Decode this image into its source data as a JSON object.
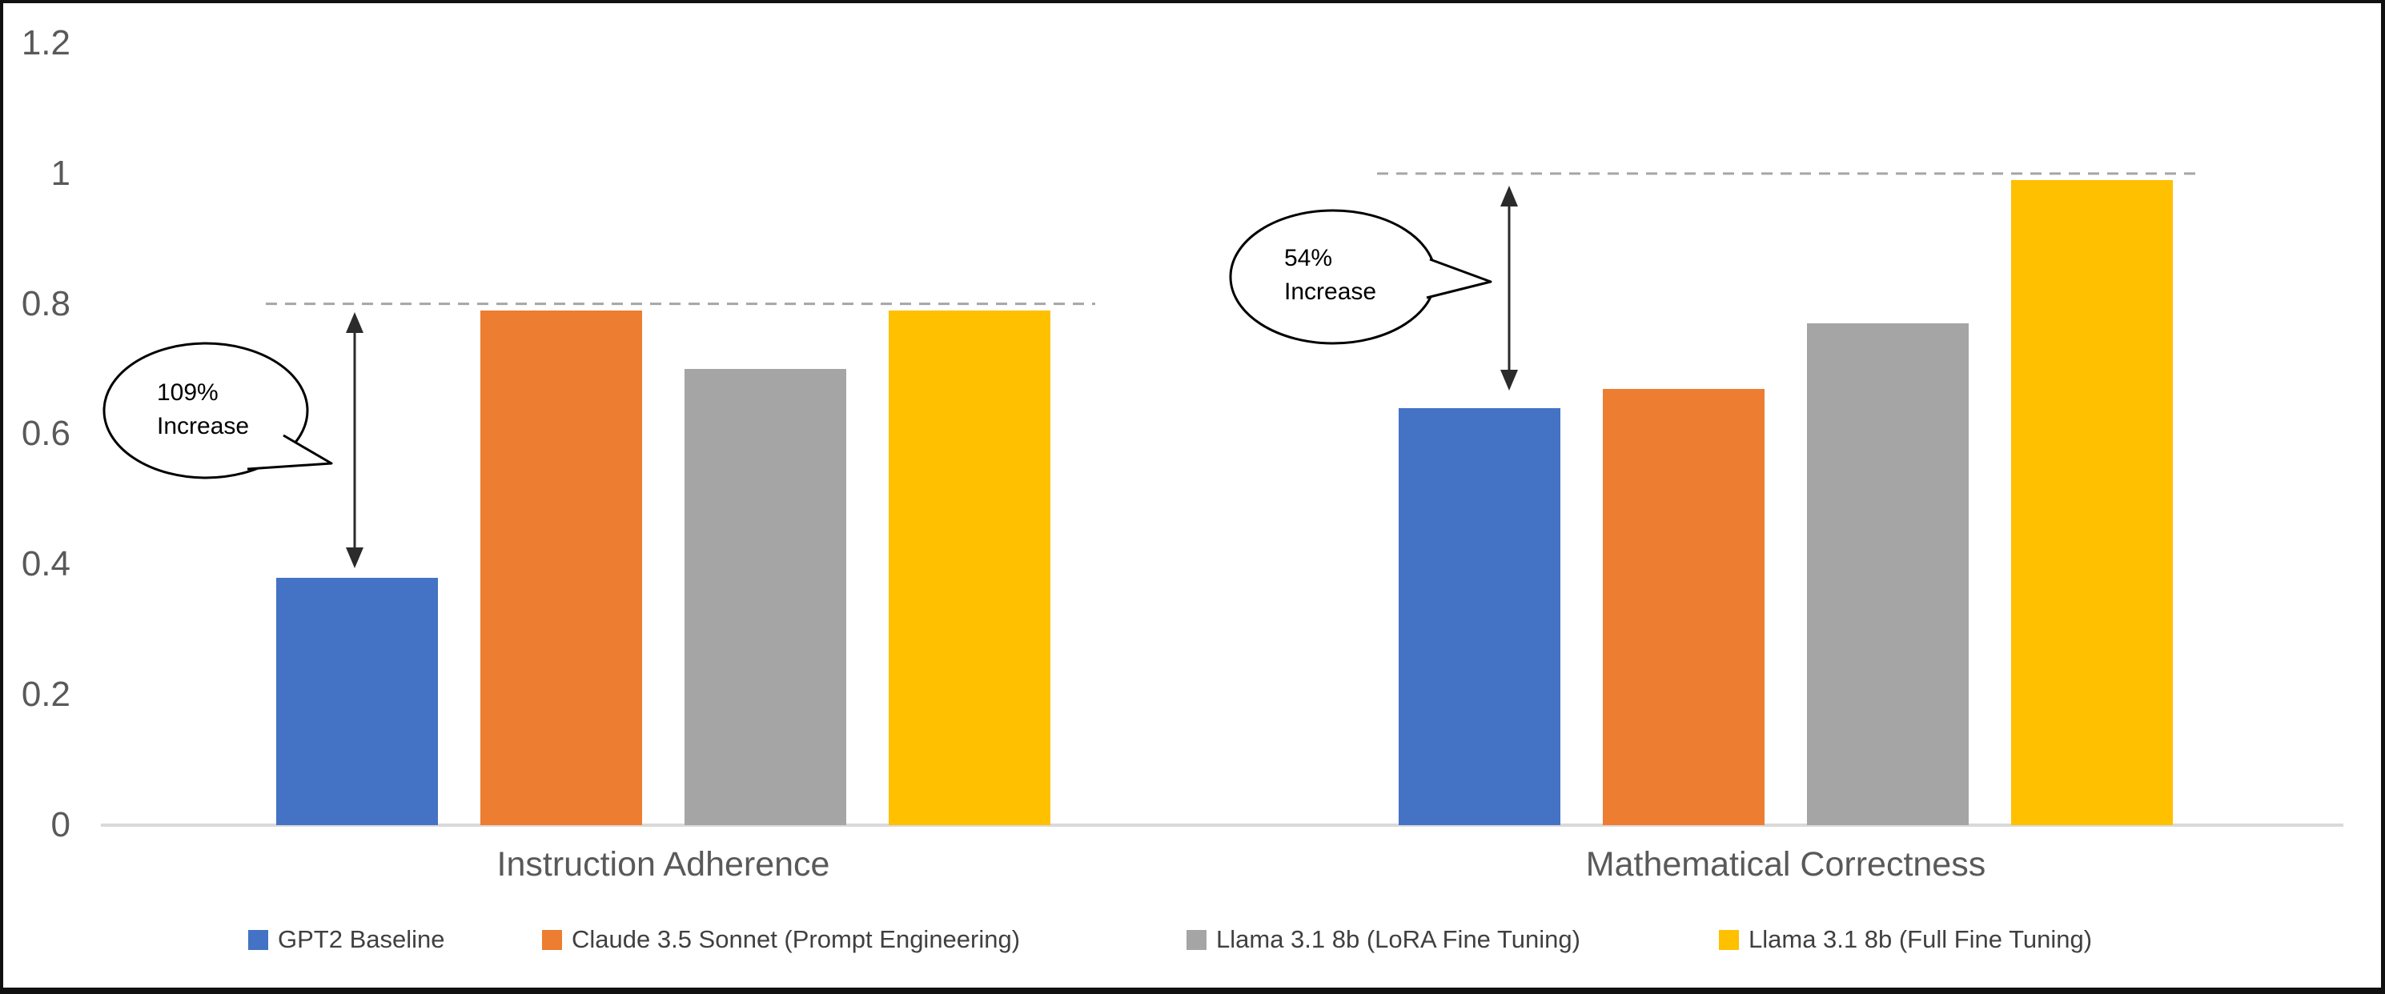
{
  "chart_data": {
    "type": "bar",
    "title": "",
    "categories": [
      "Instruction Adherence",
      "Mathematical Correctness"
    ],
    "series": [
      {
        "name": "GPT2 Baseline",
        "color": "#4472C4",
        "values": [
          0.38,
          0.64
        ]
      },
      {
        "name": "Claude 3.5 Sonnet (Prompt Engineering)",
        "color": "#ED7D31",
        "values": [
          0.79,
          0.67
        ]
      },
      {
        "name": "Llama 3.1 8b (LoRA Fine Tuning)",
        "color": "#A5A5A5",
        "values": [
          0.7,
          0.77
        ]
      },
      {
        "name": "Llama 3.1 8b (Full Fine Tuning)",
        "color": "#FFC000",
        "values": [
          0.79,
          0.99
        ]
      }
    ],
    "ylim": [
      0,
      1.2
    ],
    "y_ticks": [
      {
        "value": 0,
        "label": "0"
      },
      {
        "value": 0.2,
        "label": "0.2"
      },
      {
        "value": 0.4,
        "label": "0.4"
      },
      {
        "value": 0.6,
        "label": "0.6"
      },
      {
        "value": 0.8,
        "label": "0.8"
      },
      {
        "value": 1,
        "label": "1"
      },
      {
        "value": 1.2,
        "label": "1.2"
      }
    ],
    "grid": false,
    "legend_position": "bottom",
    "reference_lines": [
      {
        "category": "Instruction Adherence",
        "value": 0.8,
        "style": "dashed"
      },
      {
        "category": "Mathematical Correctness",
        "value": 1.0,
        "style": "dashed"
      }
    ],
    "annotations": [
      {
        "category": "Instruction Adherence",
        "line1": "109%",
        "line2": "Increase",
        "from_value": 0.38,
        "to_value": 0.8
      },
      {
        "category": "Mathematical Correctness",
        "line1": "54%",
        "line2": "Increase",
        "from_value": 0.64,
        "to_value": 1.0
      }
    ],
    "colors": {
      "axis_line": "#D9D9D9",
      "tick_text": "#595959",
      "category_text": "#595959",
      "legend_text": "#404040",
      "dashed_line": "#A6A6A6",
      "arrow": "#2B2B2B",
      "callout_outline": "#000000",
      "background": "#FFFFFF",
      "border": "#111111"
    }
  }
}
